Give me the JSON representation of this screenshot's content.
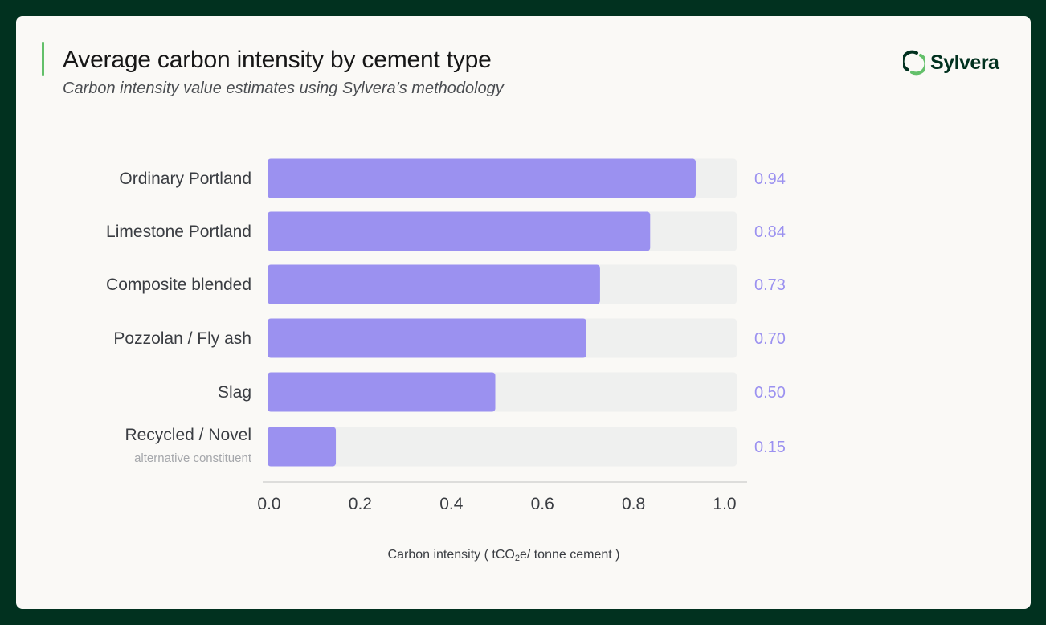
{
  "header": {
    "title": "Average carbon intensity by cement type",
    "subtitle": "Carbon intensity value estimates using Sylvera’s methodology"
  },
  "logo": {
    "text": "Sylvera",
    "icon": "sylvera-logo-icon"
  },
  "colors": {
    "bar": "#9b91f0",
    "track": "#eff0ef",
    "value_label": "#9b91f0",
    "accent": "#63c06a",
    "background": "#01311f"
  },
  "chart_data": {
    "type": "bar",
    "orientation": "horizontal",
    "title": "Average carbon intensity by cement type",
    "subtitle": "Carbon intensity value estimates using Sylvera’s methodology",
    "categories": [
      {
        "label": "Ordinary Portland",
        "sublabel": ""
      },
      {
        "label": "Limestone Portland",
        "sublabel": ""
      },
      {
        "label": "Composite blended",
        "sublabel": ""
      },
      {
        "label": "Pozzolan / Fly ash",
        "sublabel": ""
      },
      {
        "label": "Slag",
        "sublabel": ""
      },
      {
        "label": "Recycled / Novel",
        "sublabel": "alternative constituent"
      }
    ],
    "values": [
      0.94,
      0.84,
      0.73,
      0.7,
      0.5,
      0.15
    ],
    "value_labels": [
      "0.94",
      "0.84",
      "0.73",
      "0.70",
      "0.50",
      "0.15"
    ],
    "xlim": [
      0,
      1.0
    ],
    "track_max": 1.0,
    "xticks": [
      "0.0",
      "0.2",
      "0.4",
      "0.6",
      "0.8",
      "1.0"
    ],
    "xlabel_prefix": "Carbon intensity ( tCO",
    "xlabel_sub": "2",
    "xlabel_suffix": "e/ tonne cement )",
    "ylabel": "",
    "grid": false
  }
}
